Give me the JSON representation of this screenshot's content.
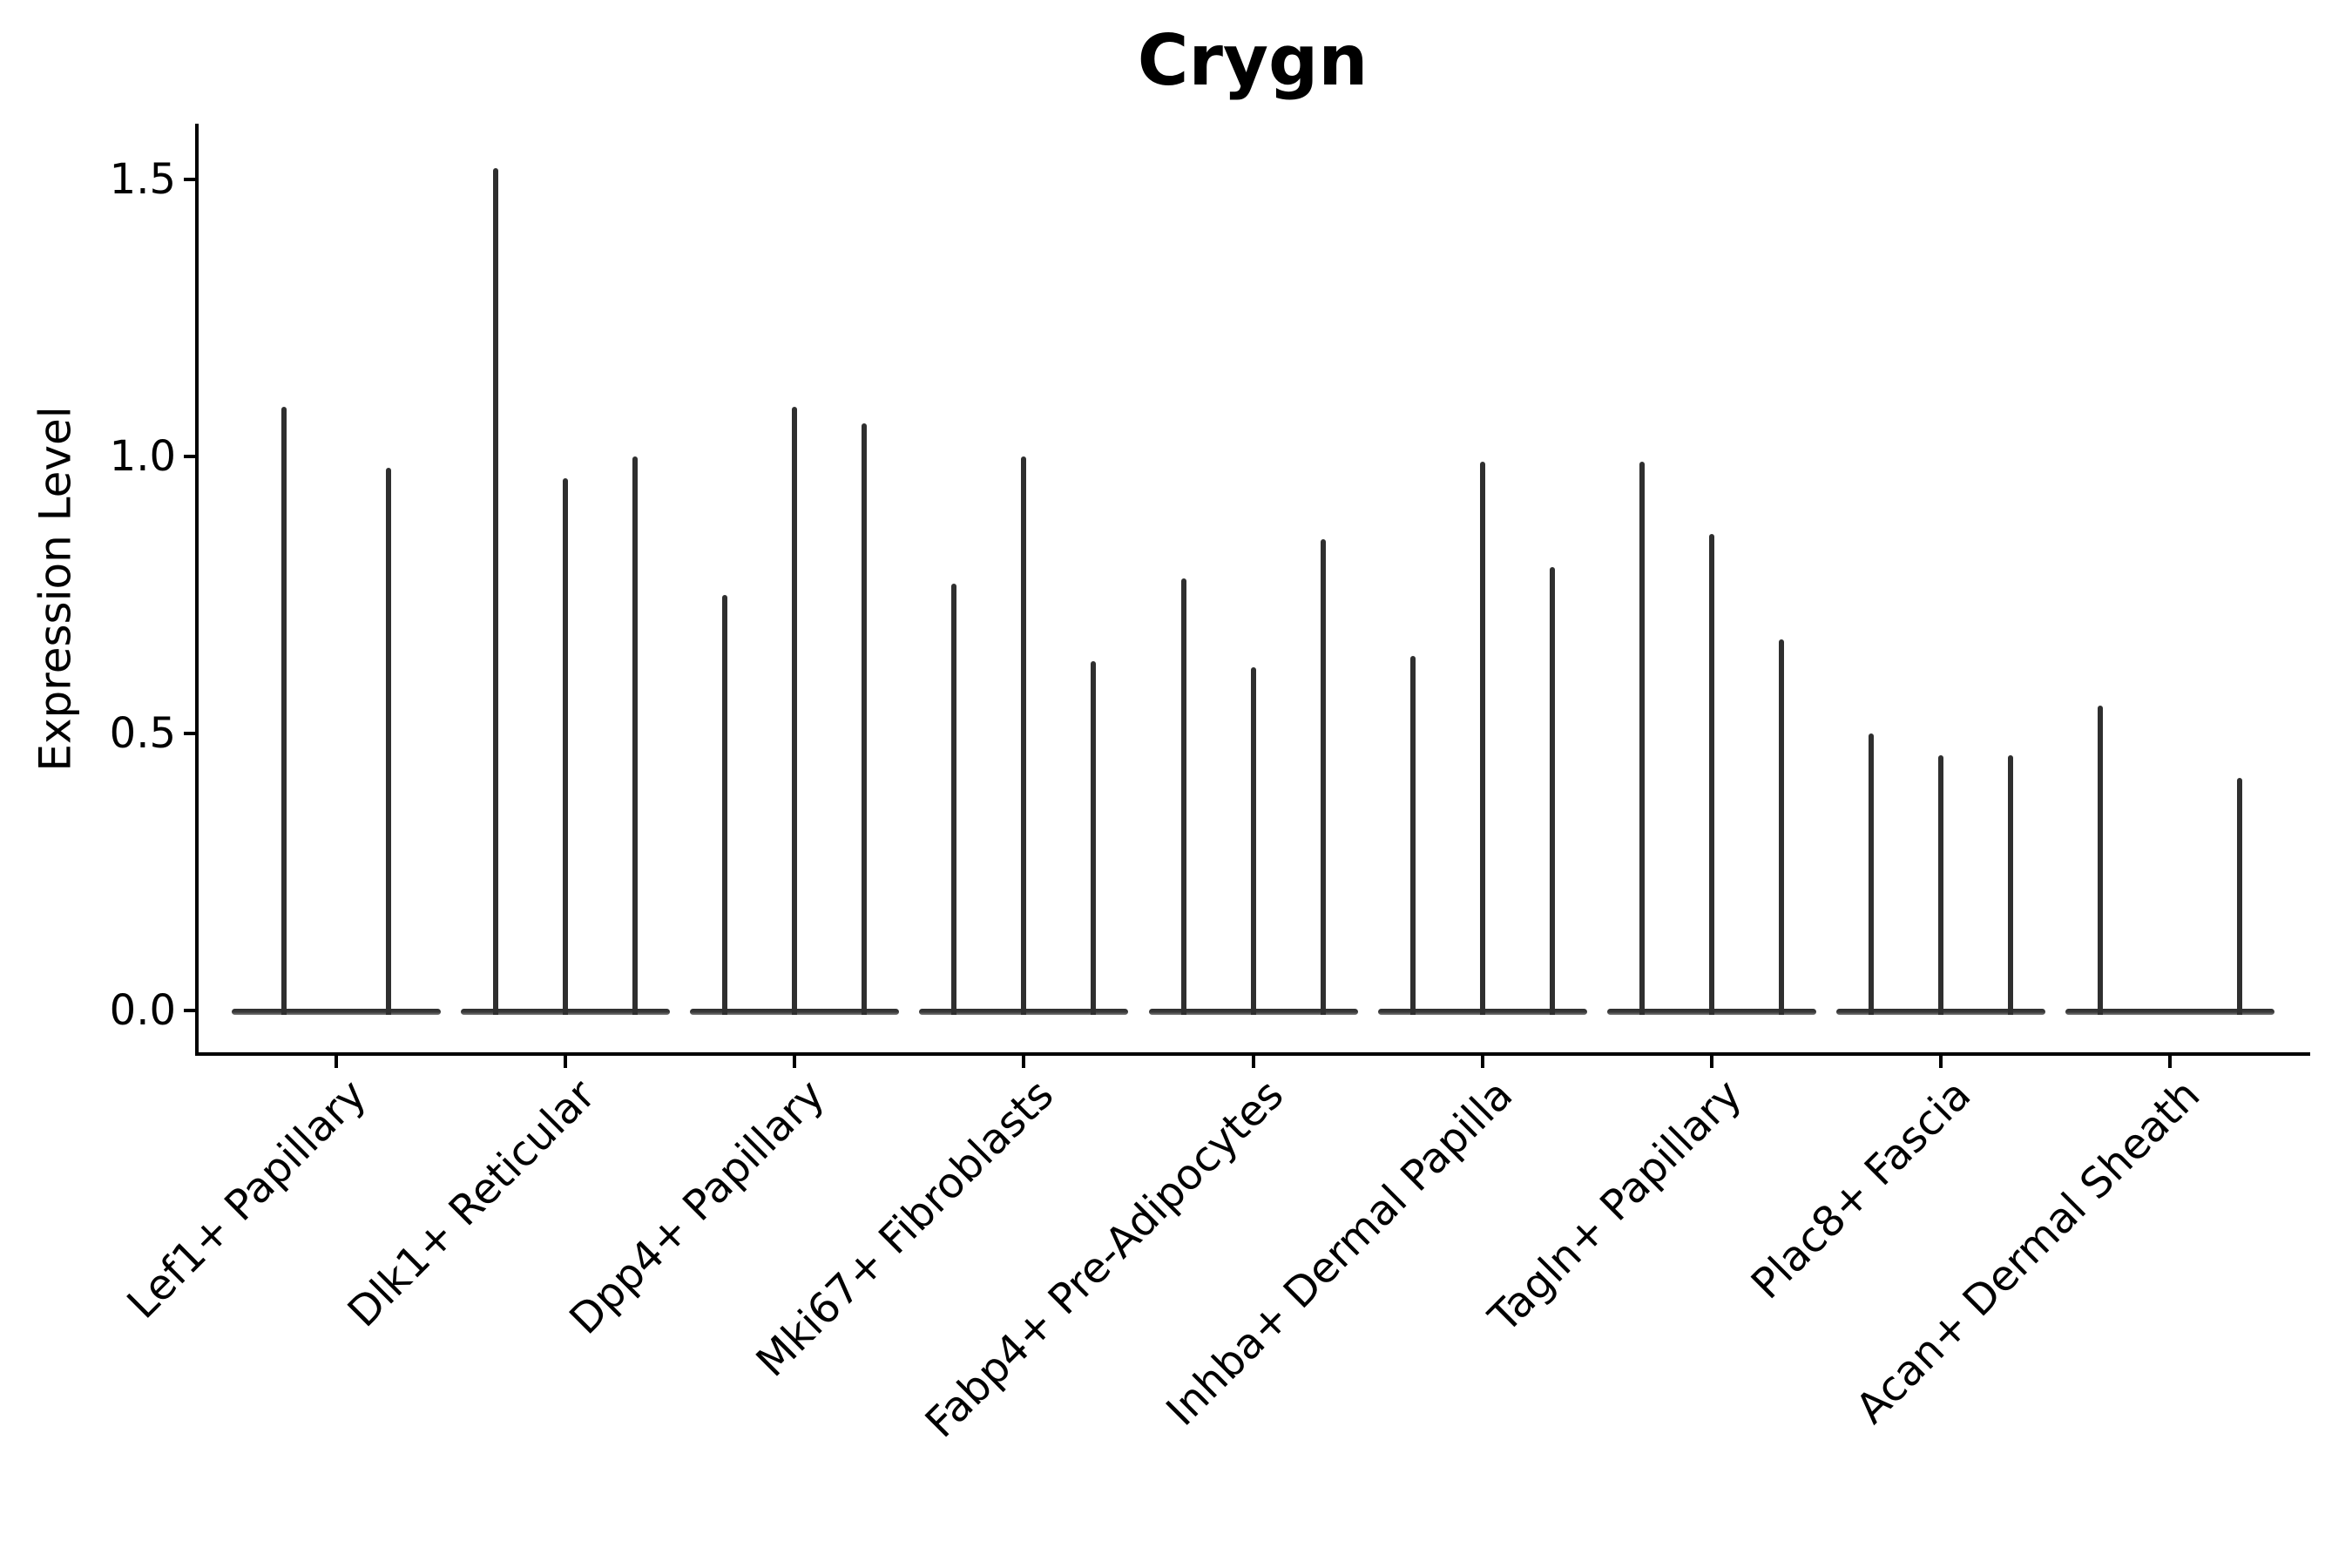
{
  "title": "Crygn",
  "y_axis": {
    "label": "Expression Level",
    "tick_labels": [
      "0.0",
      "0.5",
      "1.0",
      "1.5"
    ],
    "tick_values": [
      0.0,
      0.5,
      1.0,
      1.5
    ]
  },
  "colors": {
    "violin_line": "#2f2f2f",
    "axis": "#000000",
    "background": "#ffffff"
  },
  "chart_data": {
    "type": "violin",
    "title": "Crygn",
    "xlabel": "",
    "ylabel": "Expression Level",
    "ylim": [
      -0.08,
      1.6
    ],
    "yticks": [
      0.0,
      0.5,
      1.0,
      1.5
    ],
    "grid": false,
    "legend": "none",
    "x_tick_rotation": 45,
    "description": "Violin plot of gene expression; each cluster has 2-3 narrow violins collapsed to a flat base at 0 with a thin spike up to the maximum expression value",
    "categories": [
      "Lef1+ Papillary",
      "Dlk1+ Reticular",
      "Dpp4+ Papillary",
      "Mki67+ Fibroblasts",
      "Fabp4+ Pre-Adipocytes",
      "Inhba+ Dermal Papilla",
      "Tagln+ Papillary",
      "Plac8+ Fascia",
      "Acan+ Dermal Sheath"
    ],
    "groups": [
      {
        "category": "Lef1+ Papillary",
        "n_slots": 2,
        "violins": [
          {
            "slot": 0,
            "max": 1.09
          },
          {
            "slot": 1,
            "max": 0.98
          }
        ]
      },
      {
        "category": "Dlk1+ Reticular",
        "n_slots": 3,
        "violins": [
          {
            "slot": 0,
            "max": 1.52
          },
          {
            "slot": 1,
            "max": 0.96
          },
          {
            "slot": 2,
            "max": 1.0
          }
        ]
      },
      {
        "category": "Dpp4+ Papillary",
        "n_slots": 3,
        "violins": [
          {
            "slot": 0,
            "max": 0.75
          },
          {
            "slot": 1,
            "max": 1.09
          },
          {
            "slot": 2,
            "max": 1.06
          }
        ]
      },
      {
        "category": "Mki67+ Fibroblasts",
        "n_slots": 3,
        "violins": [
          {
            "slot": 0,
            "max": 0.77
          },
          {
            "slot": 1,
            "max": 1.0
          },
          {
            "slot": 2,
            "max": 0.63
          }
        ]
      },
      {
        "category": "Fabp4+ Pre-Adipocytes",
        "n_slots": 3,
        "violins": [
          {
            "slot": 0,
            "max": 0.78
          },
          {
            "slot": 1,
            "max": 0.62
          },
          {
            "slot": 2,
            "max": 0.85
          }
        ]
      },
      {
        "category": "Inhba+ Dermal Papilla",
        "n_slots": 3,
        "violins": [
          {
            "slot": 0,
            "max": 0.64
          },
          {
            "slot": 1,
            "max": 0.99
          },
          {
            "slot": 2,
            "max": 0.8
          }
        ]
      },
      {
        "category": "Tagln+ Papillary",
        "n_slots": 3,
        "violins": [
          {
            "slot": 0,
            "max": 0.99
          },
          {
            "slot": 1,
            "max": 0.86
          },
          {
            "slot": 2,
            "max": 0.67
          }
        ]
      },
      {
        "category": "Plac8+ Fascia",
        "n_slots": 3,
        "violins": [
          {
            "slot": 0,
            "max": 0.5
          },
          {
            "slot": 1,
            "max": 0.46
          },
          {
            "slot": 2,
            "max": 0.46
          }
        ]
      },
      {
        "category": "Acan+ Dermal Sheath",
        "n_slots": 3,
        "violins": [
          {
            "slot": 0,
            "max": 0.55
          },
          {
            "slot": 2,
            "max": 0.42
          }
        ]
      }
    ]
  }
}
